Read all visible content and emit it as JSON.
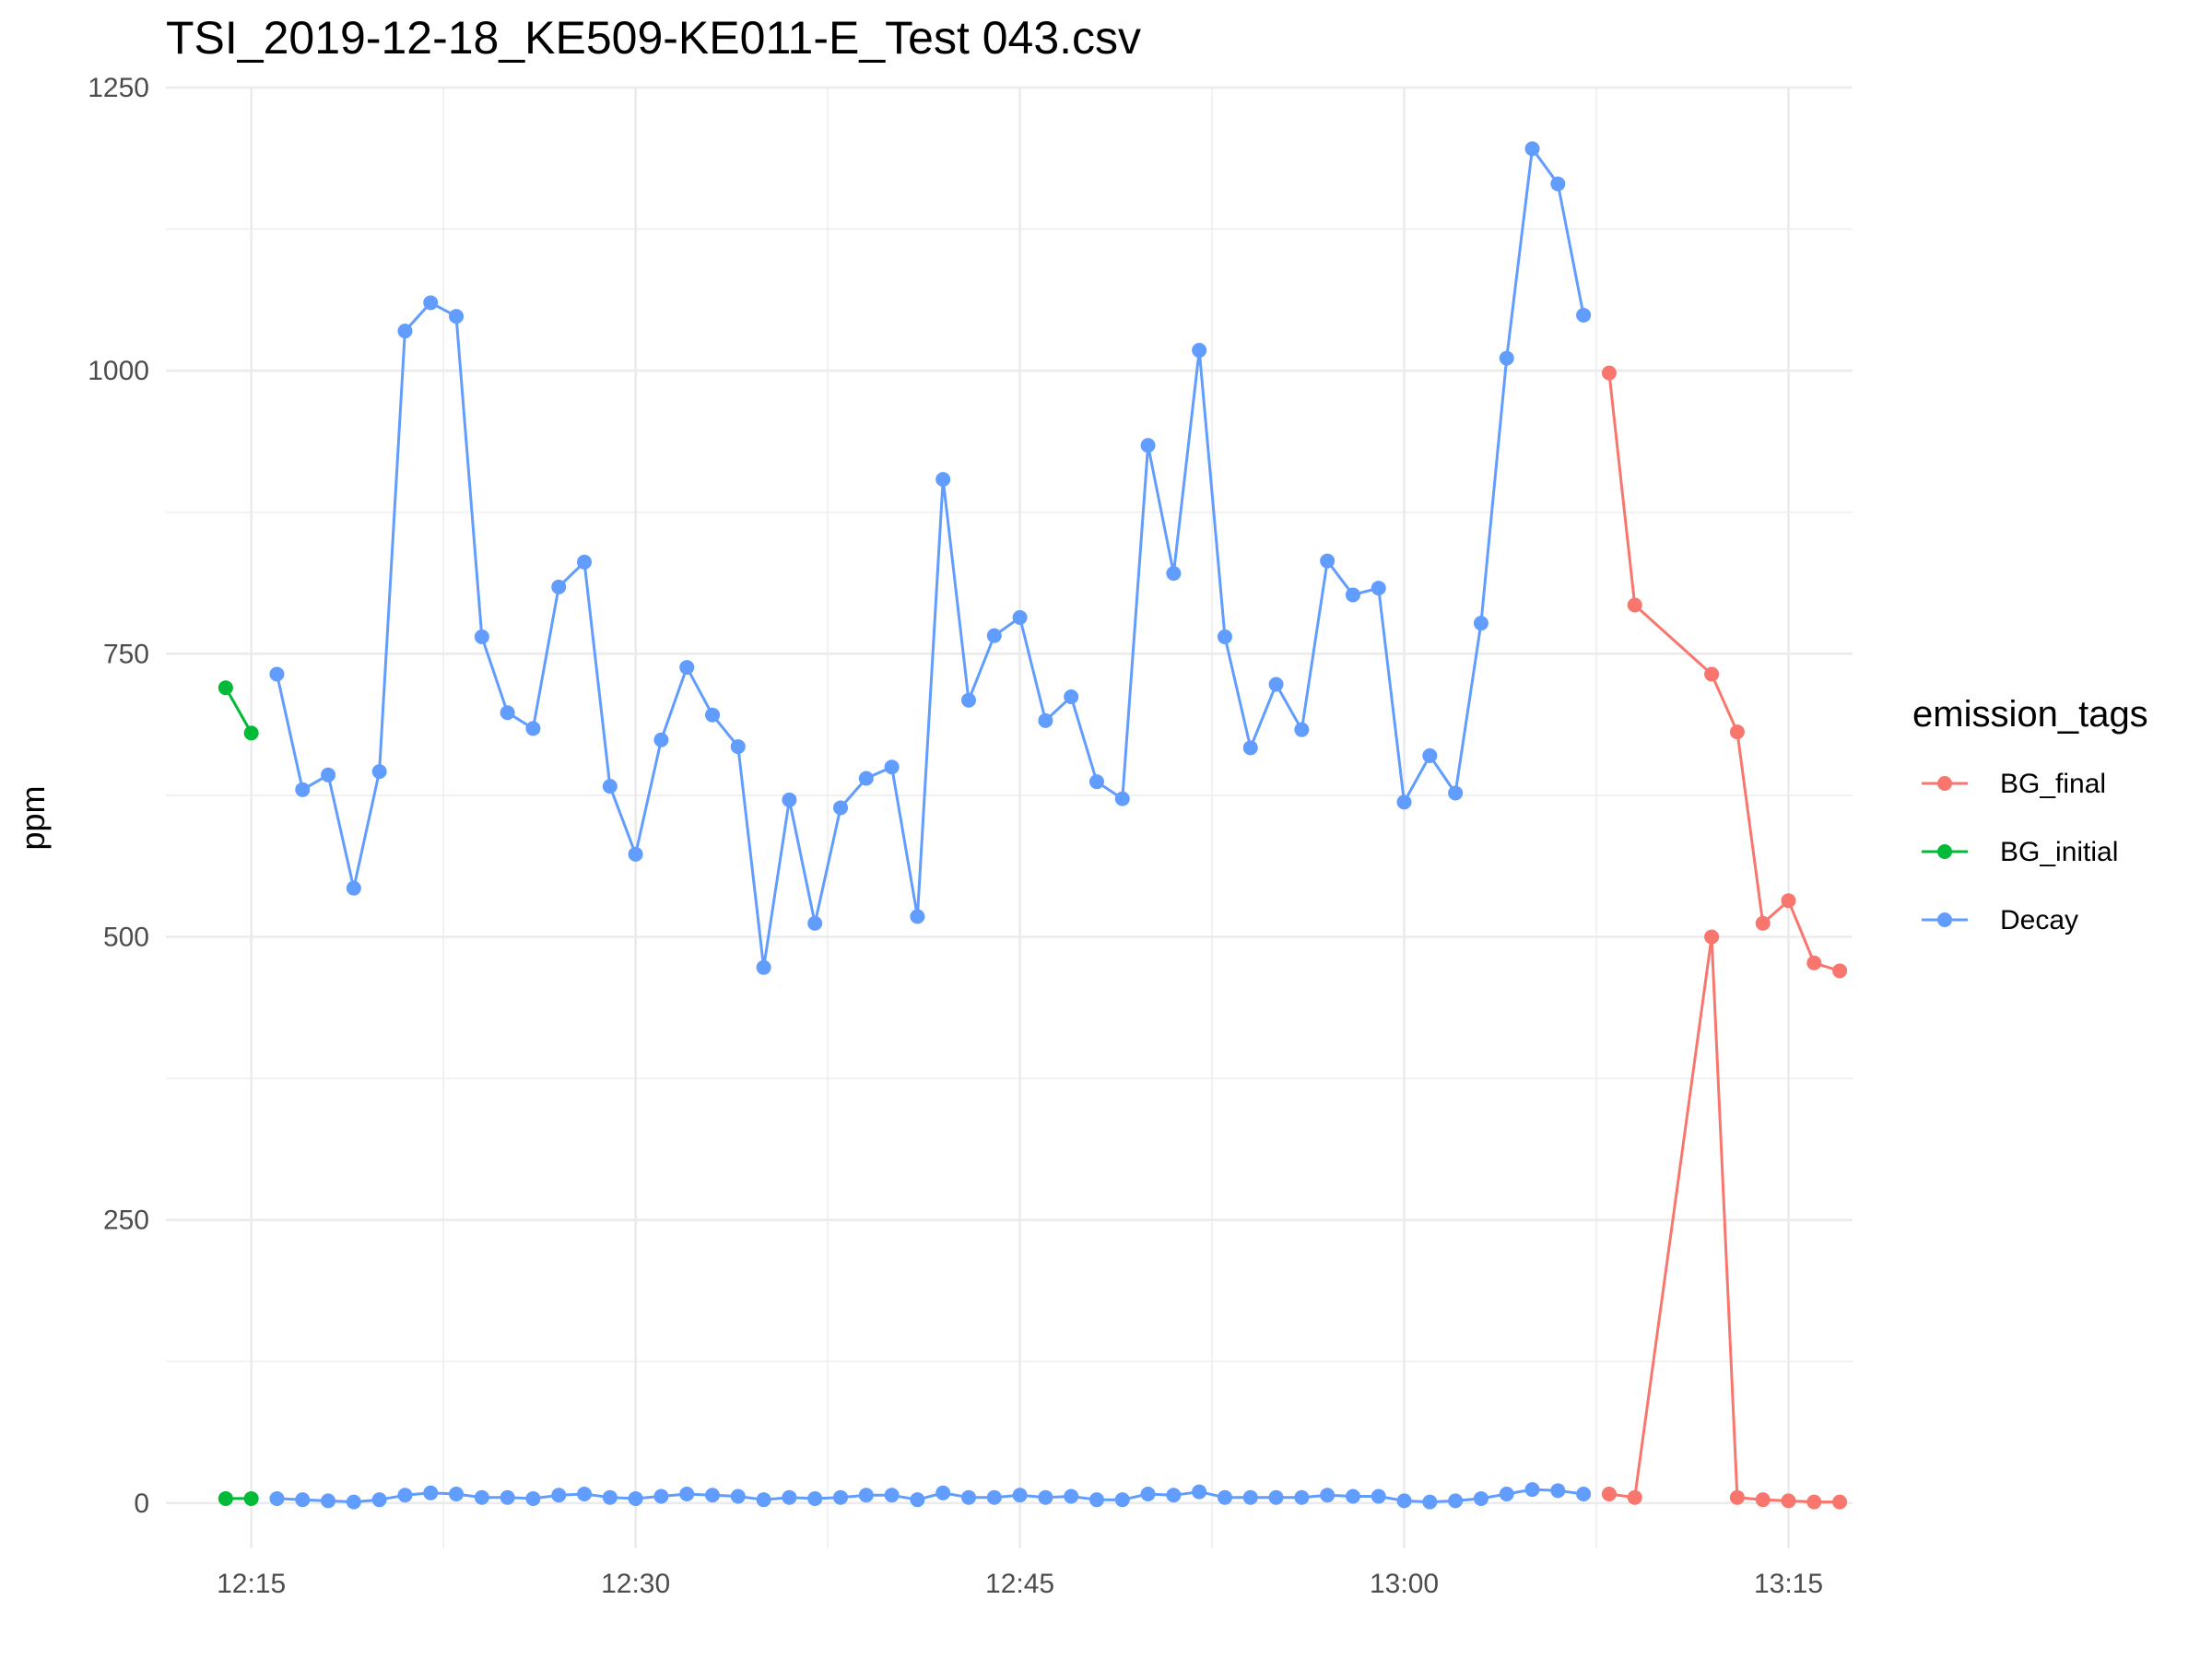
{
  "chart_data": {
    "type": "line",
    "title": "TSI_2019-12-18_KE509-KE011-E_Test 043.csv",
    "xlabel": "",
    "ylabel": "ppm",
    "x_ticks": [
      "12:15",
      "12:30",
      "12:45",
      "13:00",
      "13:15"
    ],
    "y_ticks": [
      "0",
      "250",
      "500",
      "750",
      "1000",
      "1250"
    ],
    "ylim": [
      -40,
      1250
    ],
    "xlim": [
      "12:11:40",
      "13:17:30"
    ],
    "grid": true,
    "legend": {
      "title": "emission_tags",
      "position": "right"
    },
    "series": [
      {
        "name": "BG_final",
        "color": "#F8766D",
        "traces": [
          {
            "x": [
              "13:08",
              "13:09",
              "13:12",
              "13:13",
              "13:14",
              "13:15",
              "13:16",
              "13:17"
            ],
            "y": [
              998,
              793,
              732,
              681,
              512,
              532,
              477,
              470
            ]
          },
          {
            "x": [
              "13:08",
              "13:09",
              "13:12",
              "13:13",
              "13:14",
              "13:15",
              "13:16",
              "13:17"
            ],
            "y": [
              8,
              5,
              500,
              5,
              3,
              2,
              1,
              1
            ]
          }
        ]
      },
      {
        "name": "BG_initial",
        "color": "#00BA38",
        "traces": [
          {
            "x": [
              "12:14",
              "12:15"
            ],
            "y": [
              720,
              680
            ]
          },
          {
            "x": [
              "12:14",
              "12:15"
            ],
            "y": [
              4,
              4
            ]
          }
        ]
      },
      {
        "name": "Decay",
        "color": "#619CFF",
        "traces": [
          {
            "x": [
              "12:16",
              "12:17",
              "12:18",
              "12:19",
              "12:20",
              "12:21",
              "12:22",
              "12:23",
              "12:24",
              "12:25",
              "12:26",
              "12:27",
              "12:28",
              "12:29",
              "12:30",
              "12:31",
              "12:32",
              "12:33",
              "12:34",
              "12:35",
              "12:36",
              "12:37",
              "12:38",
              "12:39",
              "12:40",
              "12:41",
              "12:42",
              "12:43",
              "12:44",
              "12:45",
              "12:46",
              "12:47",
              "12:48",
              "12:49",
              "12:50",
              "12:51",
              "12:52",
              "12:53",
              "12:54",
              "12:55",
              "12:56",
              "12:57",
              "12:58",
              "12:59",
              "13:00",
              "13:01",
              "13:02",
              "13:03",
              "13:04",
              "13:05",
              "13:06",
              "13:07"
            ],
            "y": [
              732,
              630,
              643,
              543,
              646,
              1035,
              1060,
              1048,
              765,
              698,
              684,
              809,
              831,
              633,
              573,
              674,
              738,
              696,
              668,
              473,
              621,
              512,
              614,
              640,
              650,
              518,
              904,
              709,
              766,
              782,
              691,
              712,
              637,
              622,
              934,
              821,
              1018,
              765,
              667,
              723,
              683,
              832,
              802,
              808,
              619,
              660,
              627,
              777,
              1011,
              1196,
              1165,
              1049
            ]
          },
          {
            "x": [
              "12:16",
              "12:17",
              "12:18",
              "12:19",
              "12:20",
              "12:21",
              "12:22",
              "12:23",
              "12:24",
              "12:25",
              "12:26",
              "12:27",
              "12:28",
              "12:29",
              "12:30",
              "12:31",
              "12:32",
              "12:33",
              "12:34",
              "12:35",
              "12:36",
              "12:37",
              "12:38",
              "12:39",
              "12:40",
              "12:41",
              "12:42",
              "12:43",
              "12:44",
              "12:45",
              "12:46",
              "12:47",
              "12:48",
              "12:49",
              "12:50",
              "12:51",
              "12:52",
              "12:53",
              "12:54",
              "12:55",
              "12:56",
              "12:57",
              "12:58",
              "12:59",
              "13:00",
              "13:01",
              "13:02",
              "13:03",
              "13:04",
              "13:05",
              "13:06",
              "13:07"
            ],
            "y": [
              4,
              3,
              2,
              1,
              3,
              7,
              9,
              8,
              5,
              5,
              4,
              7,
              8,
              5,
              4,
              6,
              8,
              7,
              6,
              3,
              5,
              4,
              5,
              7,
              7,
              3,
              9,
              5,
              5,
              7,
              5,
              6,
              3,
              3,
              8,
              7,
              10,
              5,
              5,
              5,
              5,
              7,
              6,
              6,
              2,
              1,
              2,
              4,
              8,
              12,
              11,
              8
            ]
          }
        ]
      }
    ]
  }
}
